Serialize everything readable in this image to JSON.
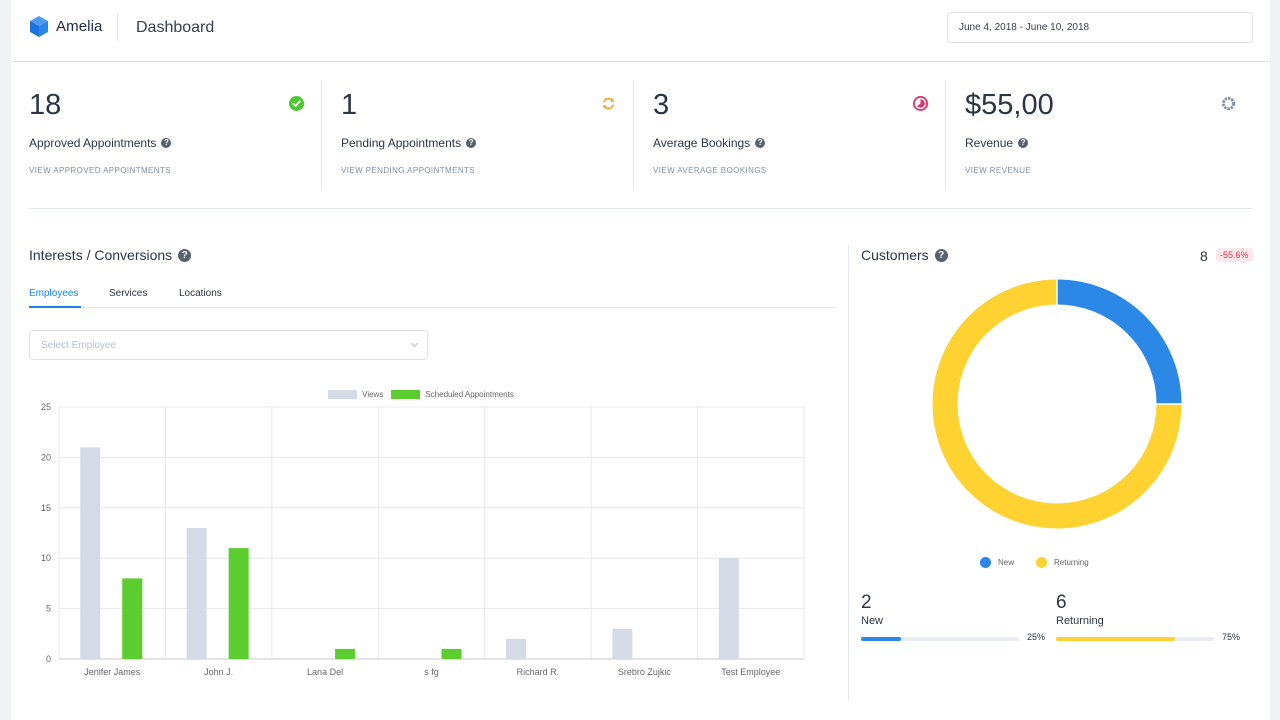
{
  "app": {
    "name": "Amelia",
    "page_title": "Dashboard"
  },
  "date_range": "June 4, 2018 - June 10, 2018",
  "stats": [
    {
      "value": "18",
      "label": "Approved Appointments",
      "link": "VIEW APPROVED APPOINTMENTS",
      "icon": "check-circle-icon",
      "color": "#4fc635"
    },
    {
      "value": "1",
      "label": "Pending Appointments",
      "link": "VIEW PENDING APPOINTMENTS",
      "icon": "refresh-icon",
      "color": "#f6a623"
    },
    {
      "value": "3",
      "label": "Average Bookings",
      "link": "VIEW AVERAGE BOOKINGS",
      "icon": "pie-icon",
      "color": "#e2336b"
    },
    {
      "value": "$55,00",
      "label": "Revenue",
      "link": "VIEW REVENUE",
      "icon": "ring-icon",
      "color": "#7f8fa4"
    }
  ],
  "interests": {
    "title": "Interests / Conversions",
    "tabs": [
      {
        "label": "Employees",
        "active": true
      },
      {
        "label": "Services",
        "active": false
      },
      {
        "label": "Locations",
        "active": false
      }
    ],
    "select_placeholder": "Select Employee"
  },
  "chart_data": {
    "type": "bar",
    "categories": [
      "Jenifer James",
      "John J.",
      "Lana Del",
      "s fg",
      "Richard  R.",
      "Srebro Zujkic",
      "Test Employee"
    ],
    "series": [
      {
        "name": "Views",
        "color": "#d4dbe6",
        "values": [
          21,
          13,
          0,
          0,
          2,
          3,
          10
        ]
      },
      {
        "name": "Scheduled Appointments",
        "color": "#5ccd2e",
        "values": [
          8,
          11,
          1,
          1,
          0,
          0,
          0
        ]
      }
    ],
    "ylim": [
      0,
      25
    ],
    "yticks": [
      0,
      5,
      10,
      15,
      20,
      25
    ],
    "legend": "top-center",
    "grid": true
  },
  "customers": {
    "title": "Customers",
    "total": "8",
    "change": "-55.6%",
    "legend": [
      {
        "label": "New",
        "color": "#2c88e6"
      },
      {
        "label": "Returning",
        "color": "#fdd231"
      }
    ],
    "donut": {
      "new_fraction": 0.25,
      "returning_fraction": 0.75
    },
    "new": {
      "count": "2",
      "label": "New",
      "percent": "25%",
      "fraction": 0.25,
      "color": "#2c88e6"
    },
    "returning": {
      "count": "6",
      "label": "Returning",
      "percent": "75%",
      "fraction": 0.75,
      "color": "#fdd231"
    }
  }
}
